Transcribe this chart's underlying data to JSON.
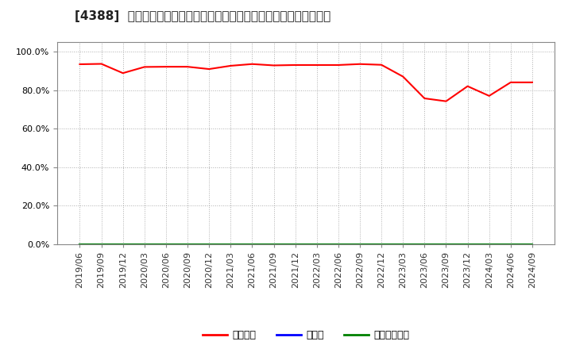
{
  "title": "[4388]  自己資本、のれん、繰延税金資産の総資産に対する比率の推移",
  "x_labels": [
    "2019/06",
    "2019/09",
    "2019/12",
    "2020/03",
    "2020/06",
    "2020/09",
    "2020/12",
    "2021/03",
    "2021/06",
    "2021/09",
    "2021/12",
    "2022/03",
    "2022/06",
    "2022/09",
    "2022/12",
    "2023/03",
    "2023/06",
    "2023/09",
    "2023/12",
    "2024/03",
    "2024/06",
    "2024/09"
  ],
  "equity_ratio": [
    0.934,
    0.936,
    0.888,
    0.92,
    0.921,
    0.921,
    0.909,
    0.926,
    0.935,
    0.928,
    0.93,
    0.93,
    0.93,
    0.935,
    0.931,
    0.87,
    0.757,
    0.742,
    0.82,
    0.77,
    0.84,
    0.84
  ],
  "goodwill_ratio": [
    0.0,
    0.0,
    0.0,
    0.0,
    0.0,
    0.0,
    0.0,
    0.0,
    0.0,
    0.0,
    0.0,
    0.0,
    0.0,
    0.0,
    0.0,
    0.0,
    0.0,
    0.0,
    0.0,
    0.0,
    0.0,
    0.0
  ],
  "deferred_tax_ratio": [
    0.0,
    0.0,
    0.0,
    0.0,
    0.0,
    0.0,
    0.0,
    0.0,
    0.0,
    0.0,
    0.0,
    0.0,
    0.0,
    0.0,
    0.0,
    0.0,
    0.0,
    0.0,
    0.0,
    0.0,
    0.0,
    0.0
  ],
  "equity_color": "#ff0000",
  "goodwill_color": "#0000ff",
  "deferred_tax_color": "#008000",
  "legend_labels": [
    "自己資本",
    "のれん",
    "繰延税金資産"
  ],
  "ylim": [
    0.0,
    1.05
  ],
  "yticks": [
    0.0,
    0.2,
    0.4,
    0.6,
    0.8,
    1.0
  ],
  "background_color": "#ffffff",
  "plot_bg_color": "#ffffff",
  "grid_color": "#999999",
  "title_fontsize": 11,
  "tick_fontsize": 8,
  "legend_fontsize": 9
}
